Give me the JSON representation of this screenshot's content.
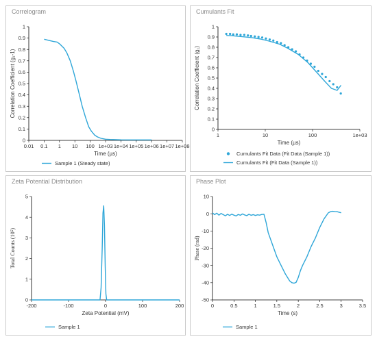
{
  "panels": {
    "correlogram": {
      "title": "Correlogram"
    },
    "cumulants": {
      "title": "Cumulants Fit"
    },
    "zeta": {
      "title": "Zeta Potential Distribution"
    },
    "phase": {
      "title": "Phase Plot"
    }
  },
  "colors": {
    "series": "#2ea6d8",
    "axis": "#000000",
    "frame": "#c9c9c9"
  },
  "chart_data": [
    {
      "type": "line",
      "title": "",
      "xlabel": "Time (µs)",
      "ylabel": "Correlation Coefficient (g₁-1)",
      "xscale": "log",
      "xlim": [
        0.01,
        100000000
      ],
      "ylim": [
        0,
        1
      ],
      "xticks": [
        "0.01",
        "0.1",
        "1",
        "10",
        "100",
        "1e+03",
        "1e+04",
        "1e+05",
        "1e+06",
        "1e+07",
        "1e+08"
      ],
      "yticks": [
        "0",
        "0.1",
        "0.2",
        "0.3",
        "0.4",
        "0.5",
        "0.6",
        "0.7",
        "0.8",
        "0.9",
        "1"
      ],
      "series": [
        {
          "name": "Sample 1 (Steady state)",
          "x": [
            0.1,
            0.2,
            0.4,
            0.7,
            1,
            2,
            3,
            5,
            8,
            12,
            20,
            30,
            50,
            80,
            120,
            200,
            300,
            500,
            1000,
            2000,
            5000,
            10000,
            50000,
            100000,
            500000,
            1000000
          ],
          "y": [
            0.89,
            0.88,
            0.87,
            0.865,
            0.85,
            0.81,
            0.77,
            0.7,
            0.61,
            0.52,
            0.4,
            0.3,
            0.2,
            0.12,
            0.08,
            0.045,
            0.03,
            0.018,
            0.01,
            0.008,
            0.006,
            0.005,
            0.004,
            0.004,
            0.004,
            0.004
          ]
        }
      ]
    },
    {
      "type": "scatter",
      "title": "",
      "xlabel": "Time (µs)",
      "ylabel": "Correlation Coefficient (g₁)",
      "xscale": "log",
      "xlim": [
        1,
        1000
      ],
      "ylim": [
        0,
        1
      ],
      "xticks": [
        "1",
        "10",
        "100",
        "1e+03"
      ],
      "yticks": [
        "0",
        "0.1",
        "0.2",
        "0.3",
        "0.4",
        "0.5",
        "0.6",
        "0.7",
        "0.8",
        "0.9",
        "1"
      ],
      "series": [
        {
          "name": "Cumulants Fit Data (Fit Data (Sample 1))",
          "kind": "points",
          "x": [
            1.5,
            1.8,
            2.1,
            2.5,
            3,
            3.6,
            4.3,
            5,
            6,
            7.2,
            8.6,
            10.3,
            12.4,
            14.8,
            17.8,
            21.4,
            25.6,
            30.7,
            36.9,
            44.3,
            53.1,
            63.8,
            76.5,
            91.8,
            110,
            132,
            159,
            190,
            229,
            274,
            330,
            395
          ],
          "y": [
            0.93,
            0.93,
            0.925,
            0.925,
            0.92,
            0.92,
            0.915,
            0.91,
            0.905,
            0.9,
            0.895,
            0.885,
            0.875,
            0.865,
            0.85,
            0.84,
            0.82,
            0.8,
            0.78,
            0.76,
            0.73,
            0.7,
            0.67,
            0.64,
            0.61,
            0.57,
            0.54,
            0.51,
            0.47,
            0.44,
            0.41,
            0.35
          ]
        },
        {
          "name": "Cumulants Fit (Fit Data (Sample 1))",
          "kind": "line",
          "x": [
            1.5,
            2,
            3,
            5,
            8,
            12,
            20,
            30,
            50,
            80,
            120,
            180,
            250,
            330,
            400
          ],
          "y": [
            0.915,
            0.912,
            0.905,
            0.895,
            0.88,
            0.86,
            0.83,
            0.79,
            0.73,
            0.65,
            0.56,
            0.47,
            0.4,
            0.38,
            0.43
          ]
        }
      ]
    },
    {
      "type": "line",
      "title": "",
      "xlabel": "Zeta Potential (mV)",
      "ylabel": "Total Counts (10⁵)",
      "xlim": [
        -200,
        200
      ],
      "ylim": [
        0,
        5
      ],
      "xticks": [
        "-200",
        "-100",
        "0",
        "100",
        "200"
      ],
      "yticks": [
        "0",
        "1",
        "2",
        "3",
        "4",
        "5"
      ],
      "series": [
        {
          "name": "Sample 1",
          "x": [
            -200,
            -15,
            -12,
            -9,
            -7,
            -5,
            -3,
            -1,
            1,
            3,
            200
          ],
          "y": [
            0,
            0,
            0.6,
            2.5,
            4.2,
            4.55,
            3.6,
            1.6,
            0.3,
            0,
            0
          ]
        }
      ]
    },
    {
      "type": "line",
      "title": "",
      "xlabel": "Time (s)",
      "ylabel": "Phase (rad)",
      "xlim": [
        0,
        3.5
      ],
      "ylim": [
        -50,
        10
      ],
      "xticks": [
        "0",
        "0.5",
        "1",
        "1.5",
        "2",
        "2.5",
        "3",
        "3.5"
      ],
      "yticks": [
        "-50",
        "-40",
        "-30",
        "-20",
        "-10",
        "0",
        "10"
      ],
      "series": [
        {
          "name": "Sample 1",
          "x": [
            0,
            0.05,
            0.1,
            0.15,
            0.2,
            0.25,
            0.3,
            0.35,
            0.4,
            0.45,
            0.5,
            0.55,
            0.6,
            0.65,
            0.7,
            0.75,
            0.8,
            0.85,
            0.9,
            0.95,
            1.0,
            1.05,
            1.1,
            1.15,
            1.2,
            1.25,
            1.3,
            1.4,
            1.5,
            1.6,
            1.7,
            1.8,
            1.85,
            1.9,
            1.95,
            2.0,
            2.05,
            2.1,
            2.2,
            2.3,
            2.4,
            2.5,
            2.6,
            2.7,
            2.75,
            2.8,
            2.85,
            2.9,
            2.95,
            3.0
          ],
          "y": [
            0.5,
            -0.5,
            0.3,
            -0.8,
            0.2,
            -0.5,
            -1.2,
            -0.3,
            -1.0,
            -0.2,
            -0.8,
            -1.3,
            -0.4,
            -0.9,
            -0.1,
            -0.7,
            -1.1,
            -0.3,
            -0.9,
            -0.5,
            -1.0,
            -0.6,
            -0.8,
            -0.4,
            -0.3,
            -5,
            -11,
            -18,
            -25,
            -30,
            -35,
            -39,
            -40,
            -40.3,
            -39.8,
            -37,
            -33,
            -30,
            -25,
            -19,
            -14,
            -8,
            -3,
            0.5,
            1.2,
            1.4,
            1.3,
            1.2,
            0.9,
            0.6
          ]
        }
      ]
    }
  ]
}
